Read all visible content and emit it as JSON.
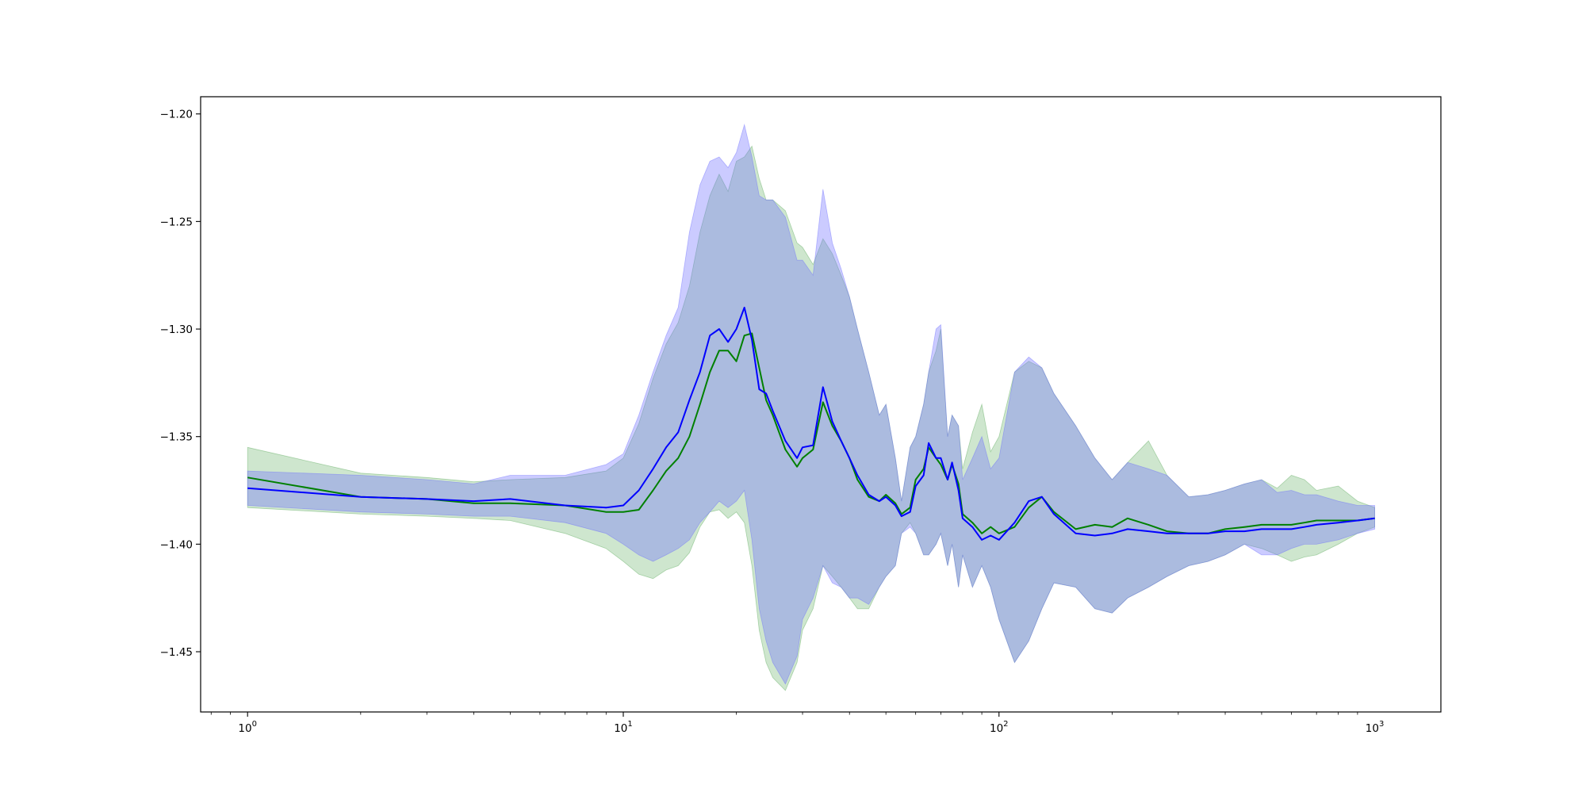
{
  "chart_data": {
    "type": "area",
    "title": "",
    "xlabel": "",
    "ylabel": "",
    "xscale": "log",
    "xlim": [
      0.75,
      1500
    ],
    "ylim": [
      -1.478,
      -1.192
    ],
    "grid": false,
    "legend": false,
    "x_ticks": [
      {
        "value": 1,
        "base": "10",
        "exp": "0"
      },
      {
        "value": 10,
        "base": "10",
        "exp": "1"
      },
      {
        "value": 100,
        "base": "10",
        "exp": "2"
      },
      {
        "value": 1000,
        "base": "10",
        "exp": "3"
      }
    ],
    "y_ticks": [
      {
        "value": -1.45,
        "label": "−1.45"
      },
      {
        "value": -1.4,
        "label": "−1.40"
      },
      {
        "value": -1.35,
        "label": "−1.35"
      },
      {
        "value": -1.3,
        "label": "−1.30"
      },
      {
        "value": -1.25,
        "label": "−1.25"
      },
      {
        "value": -1.2,
        "label": "−1.20"
      }
    ],
    "series": [
      {
        "color": "#008000",
        "band_color": "#228b22",
        "band_opacity": 0.22,
        "x": [
          1,
          2,
          3,
          4,
          5,
          7,
          9,
          10,
          11,
          12,
          13,
          14,
          15,
          16,
          17,
          18,
          19,
          20,
          21,
          22,
          23,
          24,
          25,
          27,
          29,
          30,
          32,
          34,
          36,
          38,
          40,
          42,
          45,
          48,
          50,
          53,
          55,
          58,
          60,
          63,
          65,
          68,
          70,
          73,
          75,
          78,
          80,
          85,
          90,
          95,
          100,
          110,
          120,
          130,
          140,
          160,
          180,
          200,
          220,
          250,
          280,
          320,
          360,
          400,
          450,
          500,
          550,
          600,
          650,
          700,
          800,
          900,
          1000
        ],
        "mean": [
          -1.369,
          -1.378,
          -1.379,
          -1.381,
          -1.381,
          -1.382,
          -1.385,
          -1.385,
          -1.384,
          -1.375,
          -1.366,
          -1.36,
          -1.35,
          -1.335,
          -1.32,
          -1.31,
          -1.31,
          -1.315,
          -1.303,
          -1.302,
          -1.318,
          -1.333,
          -1.34,
          -1.356,
          -1.364,
          -1.36,
          -1.356,
          -1.334,
          -1.345,
          -1.352,
          -1.36,
          -1.37,
          -1.378,
          -1.38,
          -1.377,
          -1.381,
          -1.386,
          -1.383,
          -1.37,
          -1.365,
          -1.355,
          -1.36,
          -1.363,
          -1.37,
          -1.363,
          -1.372,
          -1.386,
          -1.39,
          -1.395,
          -1.392,
          -1.395,
          -1.392,
          -1.383,
          -1.378,
          -1.385,
          -1.393,
          -1.391,
          -1.392,
          -1.388,
          -1.391,
          -1.394,
          -1.395,
          -1.395,
          -1.393,
          -1.392,
          -1.391,
          -1.391,
          -1.391,
          -1.39,
          -1.389,
          -1.389,
          -1.389,
          -1.388
        ],
        "upper": [
          -1.355,
          -1.367,
          -1.369,
          -1.371,
          -1.37,
          -1.369,
          -1.366,
          -1.36,
          -1.344,
          -1.323,
          -1.307,
          -1.297,
          -1.28,
          -1.255,
          -1.238,
          -1.228,
          -1.236,
          -1.222,
          -1.22,
          -1.215,
          -1.23,
          -1.24,
          -1.24,
          -1.245,
          -1.26,
          -1.262,
          -1.27,
          -1.258,
          -1.265,
          -1.275,
          -1.285,
          -1.3,
          -1.32,
          -1.34,
          -1.335,
          -1.36,
          -1.38,
          -1.355,
          -1.35,
          -1.335,
          -1.32,
          -1.31,
          -1.3,
          -1.35,
          -1.34,
          -1.345,
          -1.365,
          -1.348,
          -1.335,
          -1.357,
          -1.35,
          -1.32,
          -1.315,
          -1.318,
          -1.33,
          -1.345,
          -1.36,
          -1.37,
          -1.362,
          -1.352,
          -1.368,
          -1.378,
          -1.377,
          -1.375,
          -1.372,
          -1.37,
          -1.374,
          -1.368,
          -1.37,
          -1.375,
          -1.373,
          -1.38,
          -1.383
        ],
        "lower": [
          -1.383,
          -1.386,
          -1.387,
          -1.388,
          -1.389,
          -1.395,
          -1.402,
          -1.408,
          -1.414,
          -1.416,
          -1.412,
          -1.41,
          -1.404,
          -1.392,
          -1.385,
          -1.384,
          -1.388,
          -1.385,
          -1.39,
          -1.41,
          -1.44,
          -1.455,
          -1.462,
          -1.468,
          -1.455,
          -1.44,
          -1.43,
          -1.41,
          -1.415,
          -1.42,
          -1.425,
          -1.43,
          -1.43,
          -1.42,
          -1.415,
          -1.41,
          -1.395,
          -1.39,
          -1.395,
          -1.405,
          -1.405,
          -1.4,
          -1.395,
          -1.41,
          -1.4,
          -1.42,
          -1.405,
          -1.42,
          -1.41,
          -1.42,
          -1.435,
          -1.455,
          -1.445,
          -1.43,
          -1.418,
          -1.42,
          -1.43,
          -1.432,
          -1.425,
          -1.42,
          -1.415,
          -1.41,
          -1.408,
          -1.405,
          -1.4,
          -1.402,
          -1.405,
          -1.408,
          -1.406,
          -1.405,
          -1.4,
          -1.395,
          -1.392
        ]
      },
      {
        "color": "#0000ff",
        "band_color": "#6a6aff",
        "band_opacity": 0.35,
        "x": [
          1,
          2,
          3,
          4,
          5,
          7,
          9,
          10,
          11,
          12,
          13,
          14,
          15,
          16,
          17,
          18,
          19,
          20,
          21,
          22,
          23,
          24,
          25,
          27,
          29,
          30,
          32,
          34,
          36,
          38,
          40,
          42,
          45,
          48,
          50,
          53,
          55,
          58,
          60,
          63,
          65,
          68,
          70,
          73,
          75,
          78,
          80,
          85,
          90,
          95,
          100,
          110,
          120,
          130,
          140,
          160,
          180,
          200,
          220,
          250,
          280,
          320,
          360,
          400,
          450,
          500,
          550,
          600,
          650,
          700,
          800,
          900,
          1000
        ],
        "mean": [
          -1.374,
          -1.378,
          -1.379,
          -1.38,
          -1.379,
          -1.382,
          -1.383,
          -1.382,
          -1.375,
          -1.365,
          -1.355,
          -1.348,
          -1.333,
          -1.32,
          -1.303,
          -1.3,
          -1.306,
          -1.3,
          -1.29,
          -1.305,
          -1.328,
          -1.33,
          -1.338,
          -1.352,
          -1.36,
          -1.355,
          -1.354,
          -1.327,
          -1.343,
          -1.352,
          -1.36,
          -1.368,
          -1.377,
          -1.38,
          -1.378,
          -1.382,
          -1.387,
          -1.385,
          -1.373,
          -1.368,
          -1.353,
          -1.36,
          -1.36,
          -1.37,
          -1.362,
          -1.375,
          -1.388,
          -1.392,
          -1.398,
          -1.396,
          -1.398,
          -1.39,
          -1.38,
          -1.378,
          -1.386,
          -1.395,
          -1.396,
          -1.395,
          -1.393,
          -1.394,
          -1.395,
          -1.395,
          -1.395,
          -1.394,
          -1.394,
          -1.393,
          -1.393,
          -1.393,
          -1.392,
          -1.391,
          -1.39,
          -1.389,
          -1.388
        ],
        "upper": [
          -1.366,
          -1.368,
          -1.37,
          -1.372,
          -1.368,
          -1.368,
          -1.363,
          -1.358,
          -1.34,
          -1.32,
          -1.303,
          -1.29,
          -1.255,
          -1.233,
          -1.222,
          -1.22,
          -1.225,
          -1.218,
          -1.205,
          -1.22,
          -1.238,
          -1.24,
          -1.24,
          -1.248,
          -1.268,
          -1.268,
          -1.275,
          -1.235,
          -1.26,
          -1.272,
          -1.285,
          -1.3,
          -1.32,
          -1.34,
          -1.335,
          -1.36,
          -1.38,
          -1.355,
          -1.35,
          -1.335,
          -1.32,
          -1.3,
          -1.298,
          -1.35,
          -1.34,
          -1.345,
          -1.37,
          -1.36,
          -1.35,
          -1.365,
          -1.36,
          -1.32,
          -1.313,
          -1.318,
          -1.33,
          -1.345,
          -1.36,
          -1.37,
          -1.362,
          -1.365,
          -1.368,
          -1.378,
          -1.377,
          -1.375,
          -1.372,
          -1.37,
          -1.376,
          -1.375,
          -1.377,
          -1.377,
          -1.38,
          -1.382,
          -1.382
        ],
        "lower": [
          -1.382,
          -1.385,
          -1.386,
          -1.387,
          -1.387,
          -1.39,
          -1.395,
          -1.4,
          -1.405,
          -1.408,
          -1.405,
          -1.402,
          -1.398,
          -1.39,
          -1.385,
          -1.38,
          -1.383,
          -1.38,
          -1.375,
          -1.398,
          -1.43,
          -1.445,
          -1.455,
          -1.465,
          -1.452,
          -1.435,
          -1.425,
          -1.41,
          -1.418,
          -1.42,
          -1.425,
          -1.425,
          -1.428,
          -1.42,
          -1.415,
          -1.41,
          -1.395,
          -1.392,
          -1.395,
          -1.405,
          -1.405,
          -1.4,
          -1.395,
          -1.41,
          -1.4,
          -1.42,
          -1.405,
          -1.42,
          -1.41,
          -1.42,
          -1.435,
          -1.455,
          -1.445,
          -1.43,
          -1.418,
          -1.42,
          -1.43,
          -1.432,
          -1.425,
          -1.42,
          -1.415,
          -1.41,
          -1.408,
          -1.405,
          -1.4,
          -1.405,
          -1.405,
          -1.402,
          -1.4,
          -1.4,
          -1.398,
          -1.395,
          -1.393
        ]
      }
    ]
  }
}
